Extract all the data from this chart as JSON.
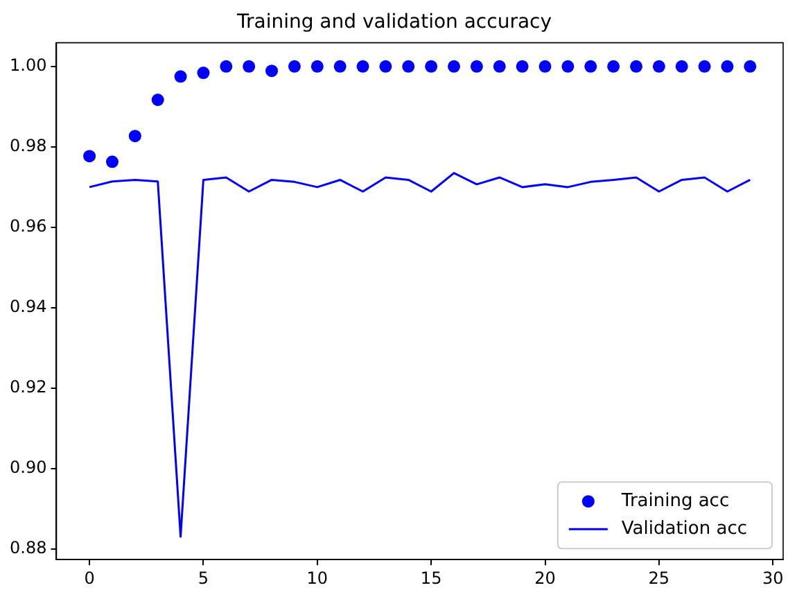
{
  "chart_data": {
    "type": "line",
    "title": "Training and validation accuracy",
    "x": [
      0,
      1,
      2,
      3,
      4,
      5,
      6,
      7,
      8,
      9,
      10,
      11,
      12,
      13,
      14,
      15,
      16,
      17,
      18,
      19,
      20,
      21,
      22,
      23,
      24,
      25,
      26,
      27,
      28,
      29
    ],
    "series": [
      {
        "name": "Training acc",
        "type": "scatter",
        "marker": "circle",
        "color": "#0000ff",
        "values": [
          0.9777,
          0.9763,
          0.9827,
          0.9917,
          0.9975,
          0.9984,
          1.0,
          1.0,
          0.9989,
          1.0,
          1.0,
          1.0,
          1.0,
          1.0,
          1.0,
          1.0,
          1.0,
          1.0,
          1.0,
          1.0,
          1.0,
          1.0,
          1.0,
          1.0,
          1.0,
          1.0,
          1.0,
          1.0,
          1.0,
          1.0
        ]
      },
      {
        "name": "Validation acc",
        "type": "line",
        "marker": "none",
        "line_style": "solid",
        "color": "#0000ff",
        "values": [
          0.97,
          0.9714,
          0.9718,
          0.9714,
          0.8831,
          0.9718,
          0.9724,
          0.9689,
          0.9718,
          0.9713,
          0.97,
          0.9718,
          0.9689,
          0.9724,
          0.9718,
          0.9689,
          0.9735,
          0.9707,
          0.9724,
          0.97,
          0.9707,
          0.97,
          0.9713,
          0.9718,
          0.9724,
          0.9689,
          0.9718,
          0.9724,
          0.9689,
          0.9718
        ]
      }
    ],
    "xlim": [
      -1.45,
      30.45
    ],
    "xticks": [
      0,
      5,
      10,
      15,
      20,
      25,
      30
    ],
    "ylim": [
      0.8774,
      1.0059
    ],
    "yticks": [
      {
        "value": 0.88,
        "label": "0.88"
      },
      {
        "value": 0.9,
        "label": "0.90"
      },
      {
        "value": 0.92,
        "label": "0.92"
      },
      {
        "value": 0.94,
        "label": "0.94"
      },
      {
        "value": 0.96,
        "label": "0.96"
      },
      {
        "value": 0.98,
        "label": "0.98"
      },
      {
        "value": 1.0,
        "label": "1.00"
      }
    ],
    "grid": false,
    "legend": "bottom right"
  }
}
